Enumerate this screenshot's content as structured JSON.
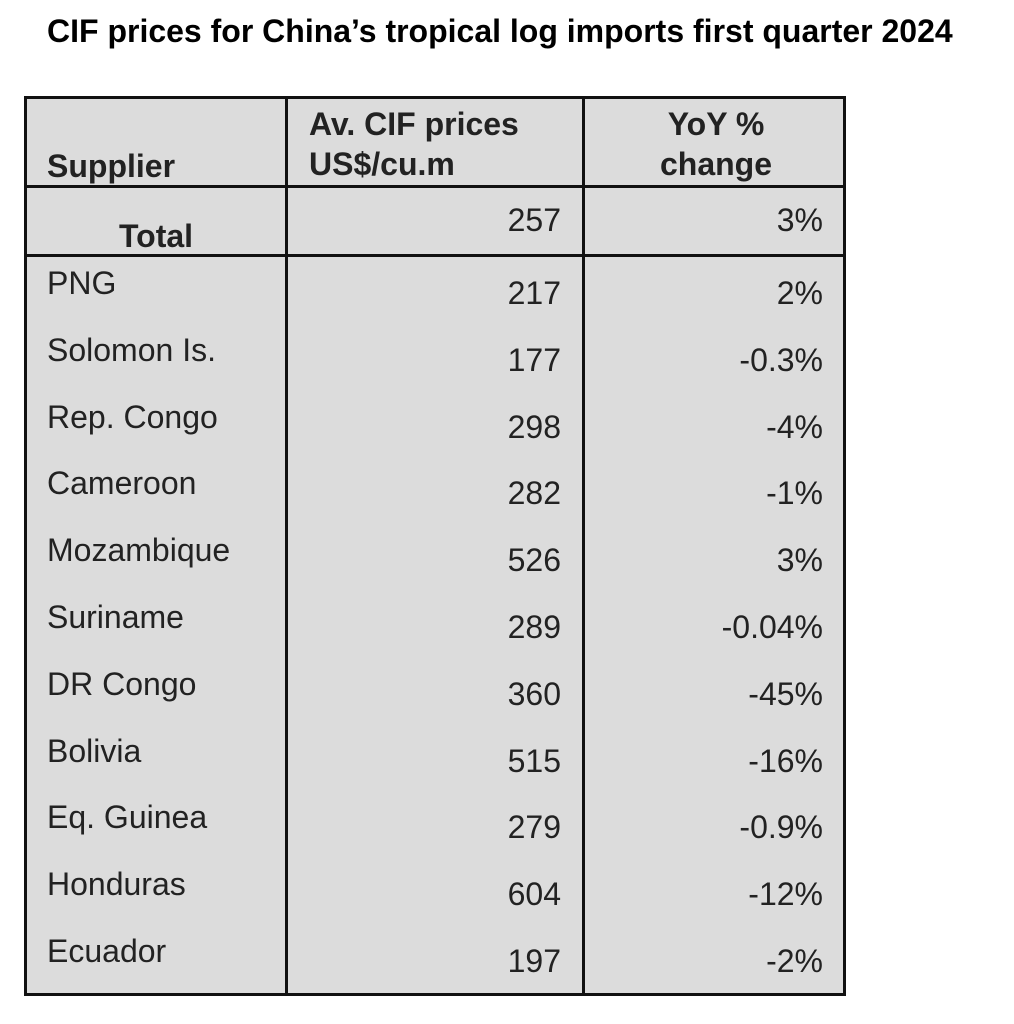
{
  "title": "CIF prices for China’s tropical log imports first quarter 2024",
  "colors": {
    "table_background": "#dcdcdc",
    "border": "#111111",
    "text": "#222222"
  },
  "chart_data": {
    "type": "table",
    "title": "CIF prices for China’s tropical log imports first quarter 2024",
    "columns": [
      "Supplier",
      "Av. CIF prices US$/cu.m",
      "YoY % change"
    ],
    "header": {
      "supplier": "Supplier",
      "price_line1": "Av. CIF prices",
      "price_line2": "US$/cu.m",
      "yoy_line1": "YoY %",
      "yoy_line2": "change"
    },
    "total": {
      "label": "Total",
      "price": "257",
      "yoy": "3%"
    },
    "rows": [
      {
        "supplier": "PNG",
        "price": "217",
        "yoy": "2%"
      },
      {
        "supplier": "Solomon Is.",
        "price": "177",
        "yoy": "-0.3%"
      },
      {
        "supplier": "Rep. Congo",
        "price": "298",
        "yoy": "-4%"
      },
      {
        "supplier": "Cameroon",
        "price": "282",
        "yoy": "-1%"
      },
      {
        "supplier": "Mozambique",
        "price": "526",
        "yoy": "3%"
      },
      {
        "supplier": "Suriname",
        "price": "289",
        "yoy": "-0.04%"
      },
      {
        "supplier": "DR Congo",
        "price": "360",
        "yoy": "-45%"
      },
      {
        "supplier": "Bolivia",
        "price": "515",
        "yoy": "-16%"
      },
      {
        "supplier": "Eq. Guinea",
        "price": "279",
        "yoy": "-0.9%"
      },
      {
        "supplier": "Honduras",
        "price": "604",
        "yoy": "-12%"
      },
      {
        "supplier": "Ecuador",
        "price": "197",
        "yoy": "-2%"
      }
    ]
  }
}
